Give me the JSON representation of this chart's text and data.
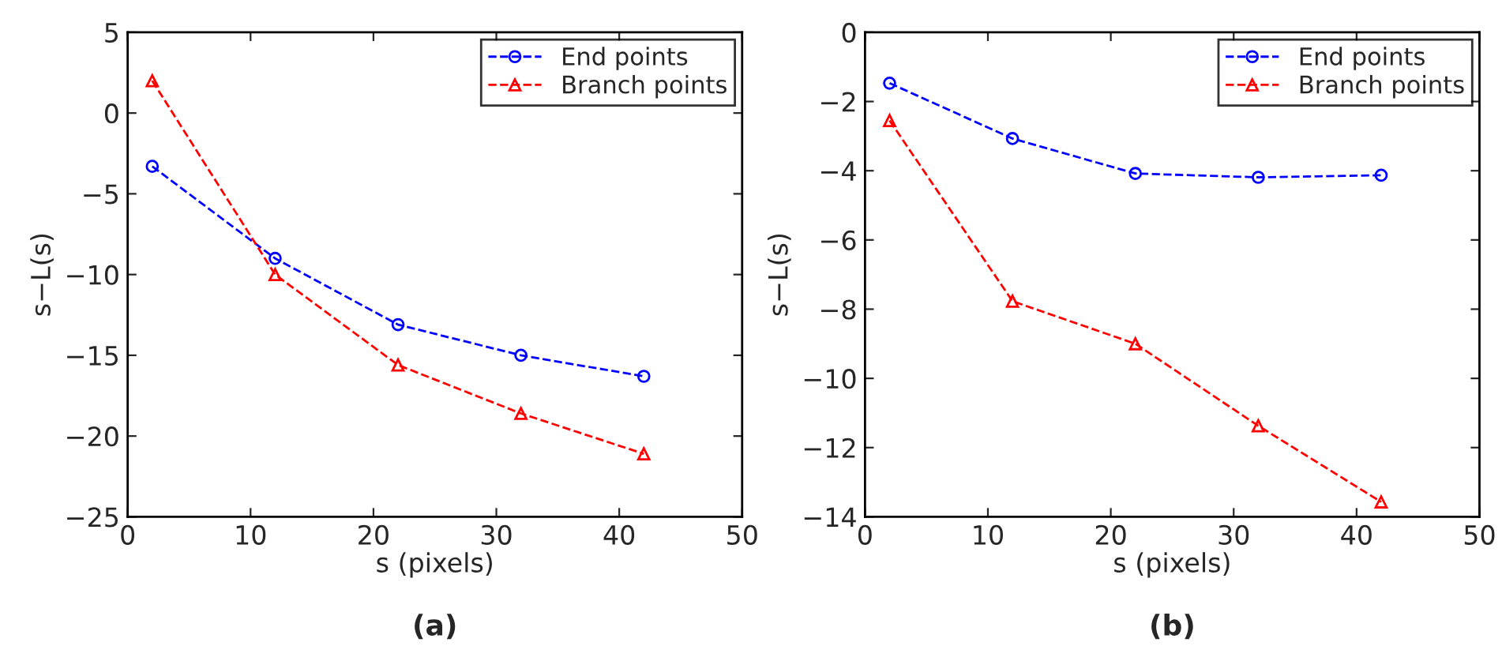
{
  "chart_data": [
    {
      "type": "line",
      "xlabel": "s (pixels)",
      "ylabel": "s−L(s)",
      "annotations": [
        "(a)"
      ],
      "x": [
        2,
        12,
        22,
        32,
        42
      ],
      "xlim": [
        0,
        50
      ],
      "xticks": [
        0,
        10,
        20,
        30,
        40,
        50
      ],
      "ylim": [
        -25,
        5
      ],
      "yticks": [
        -25,
        -20,
        -15,
        -10,
        -5,
        0,
        5
      ],
      "grid": false,
      "legend": "top right",
      "line_style": "dashed",
      "series": [
        {
          "name": "End points",
          "color": "#0000ff",
          "marker": "circle",
          "values": [
            -3.3,
            -9.0,
            -13.1,
            -15.0,
            -16.3
          ]
        },
        {
          "name": "Branch points",
          "color": "#ff0000",
          "marker": "triangle",
          "values": [
            2.0,
            -10.0,
            -15.6,
            -18.6,
            -21.1
          ]
        }
      ]
    },
    {
      "type": "line",
      "xlabel": "s (pixels)",
      "ylabel": "s−L(s)",
      "annotations": [
        "(b)"
      ],
      "x": [
        2,
        12,
        22,
        32,
        42
      ],
      "xlim": [
        0,
        50
      ],
      "xticks": [
        0,
        10,
        20,
        30,
        40,
        50
      ],
      "ylim": [
        -14,
        0
      ],
      "yticks": [
        -14,
        -12,
        -10,
        -8,
        -6,
        -4,
        -2,
        0
      ],
      "grid": false,
      "legend": "top right",
      "line_style": "dashed",
      "series": [
        {
          "name": "End points",
          "color": "#0000ff",
          "marker": "circle",
          "values": [
            -1.47,
            -3.07,
            -4.08,
            -4.19,
            -4.13
          ]
        },
        {
          "name": "Branch points",
          "color": "#ff0000",
          "marker": "triangle",
          "values": [
            -2.55,
            -7.77,
            -9.0,
            -11.37,
            -13.57
          ]
        }
      ]
    }
  ]
}
